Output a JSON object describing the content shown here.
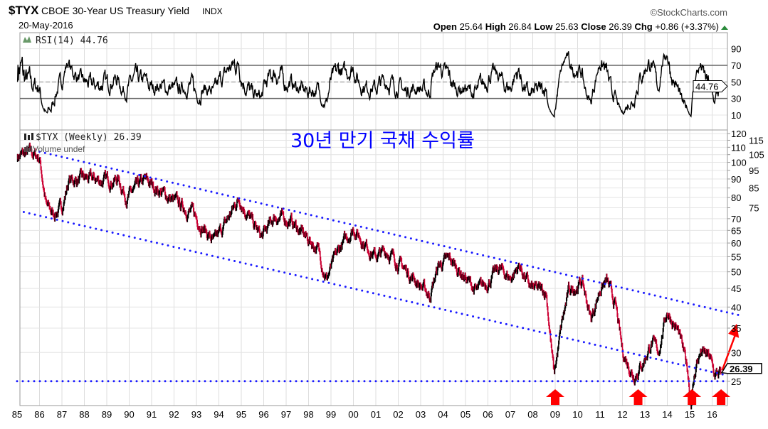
{
  "header": {
    "symbol": "$TYX",
    "name": "CBOE 30-Year US Treasury Yield",
    "exchange": "INDX",
    "date": "20-May-2016",
    "brand": "©StockCharts.com",
    "open_label": "Open",
    "open": "25.64",
    "high_label": "High",
    "high": "26.84",
    "low_label": "Low",
    "low": "25.63",
    "close_label": "Close",
    "close": "26.39",
    "chg_label": "Chg",
    "chg": "+0.86 (+3.37%)"
  },
  "colors": {
    "price": "#000000",
    "down": "#cc0033",
    "trend": "#1a1aff",
    "arrow": "#ff0000",
    "title": "#0000ff"
  },
  "chart_data": [
    {
      "type": "line",
      "panel": "RSI",
      "legend": "RSI(14) 44.76",
      "last_value": "44.76",
      "yticks": [
        "90",
        "70",
        "50",
        "30",
        "10"
      ],
      "ylim": [
        0,
        100
      ],
      "levels": [
        70,
        50,
        30
      ]
    },
    {
      "type": "line",
      "panel": "price",
      "title": "30년 만기 국채 수익률",
      "legend": "$TYX (Weekly) 26.39",
      "volume_legend": "Volume undef",
      "last_value": "26.39",
      "scale": "log",
      "ylim": [
        20,
        122
      ],
      "yticks": [
        "120",
        "115",
        "110",
        "105",
        "100",
        "95",
        "90",
        "85",
        "80",
        "75",
        "70",
        "65",
        "60",
        "55",
        "50",
        "45",
        "40",
        "35",
        "30",
        "25"
      ],
      "xticks": [
        "85",
        "86",
        "87",
        "88",
        "89",
        "90",
        "91",
        "92",
        "93",
        "94",
        "95",
        "96",
        "97",
        "98",
        "99",
        "00",
        "01",
        "02",
        "03",
        "04",
        "05",
        "06",
        "07",
        "08",
        "09",
        "10",
        "11",
        "12",
        "13",
        "14",
        "15",
        "16"
      ],
      "keypoints": [
        [
          1985.0,
          104
        ],
        [
          1985.6,
          106
        ],
        [
          1986.0,
          103
        ],
        [
          1986.3,
          76
        ],
        [
          1986.6,
          72
        ],
        [
          1987.0,
          75
        ],
        [
          1987.3,
          89
        ],
        [
          1988.0,
          90
        ],
        [
          1989.0,
          89
        ],
        [
          1989.5,
          90
        ],
        [
          1989.9,
          80
        ],
        [
          1990.7,
          89
        ],
        [
          1991.3,
          84
        ],
        [
          1992.0,
          78
        ],
        [
          1992.8,
          73
        ],
        [
          1993.8,
          60
        ],
        [
          1994.3,
          68
        ],
        [
          1994.9,
          80
        ],
        [
          1995.5,
          68
        ],
        [
          1995.9,
          62
        ],
        [
          1996.5,
          71
        ],
        [
          1997.2,
          69
        ],
        [
          1997.8,
          63
        ],
        [
          1998.4,
          58
        ],
        [
          1998.8,
          48
        ],
        [
          1999.4,
          58
        ],
        [
          2000.0,
          66
        ],
        [
          2000.5,
          60
        ],
        [
          2001.0,
          55
        ],
        [
          2001.5,
          57
        ],
        [
          2002.0,
          53
        ],
        [
          2002.7,
          48
        ],
        [
          2003.4,
          43
        ],
        [
          2003.8,
          52
        ],
        [
          2004.3,
          54
        ],
        [
          2004.9,
          49
        ],
        [
          2005.5,
          44
        ],
        [
          2006.0,
          47
        ],
        [
          2006.5,
          51
        ],
        [
          2007.0,
          48
        ],
        [
          2007.4,
          52
        ],
        [
          2007.9,
          45
        ],
        [
          2008.6,
          44
        ],
        [
          2008.85,
          30
        ],
        [
          2008.95,
          26
        ],
        [
          2009.3,
          36
        ],
        [
          2009.6,
          44
        ],
        [
          2010.2,
          47
        ],
        [
          2010.6,
          37
        ],
        [
          2011.0,
          45
        ],
        [
          2011.3,
          47
        ],
        [
          2011.7,
          40
        ],
        [
          2012.0,
          30
        ],
        [
          2012.5,
          26
        ],
        [
          2012.9,
          28
        ],
        [
          2013.3,
          32
        ],
        [
          2013.6,
          30
        ],
        [
          2013.9,
          37
        ],
        [
          2014.0,
          39
        ],
        [
          2014.5,
          34
        ],
        [
          2014.9,
          27
        ],
        [
          2015.05,
          22
        ],
        [
          2015.3,
          28
        ],
        [
          2015.5,
          30
        ],
        [
          2015.9,
          29
        ],
        [
          2016.1,
          26
        ],
        [
          2016.4,
          26.39
        ]
      ],
      "trendlines": [
        {
          "name": "upper-channel",
          "from": [
            1986.0,
            107
          ],
          "to": [
            2017.2,
            38
          ]
        },
        {
          "name": "lower-channel",
          "from": [
            1985.3,
            73
          ],
          "to": [
            2016.6,
            26
          ]
        },
        {
          "name": "support",
          "from": [
            1985.0,
            25
          ],
          "to": [
            2016.5,
            25
          ]
        }
      ],
      "markers": [
        2009.0,
        2012.7,
        2015.1,
        2016.4
      ],
      "projection": {
        "from": [
          2016.45,
          26.8
        ],
        "to": [
          2017.1,
          36
        ]
      }
    }
  ]
}
